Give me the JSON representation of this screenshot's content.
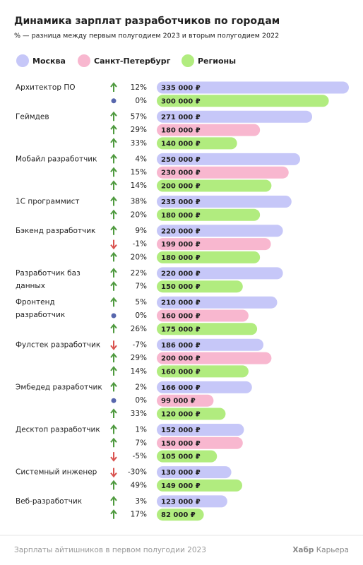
{
  "chart_data": {
    "type": "bar",
    "title": "Динамика зарплат разработчиков по городам",
    "subtitle": "% — разница между первым полугодием 2023 и вторым полугодием 2022",
    "categories": [
      "Архитектор ПО",
      "Геймдев",
      "Мобайл разработчик",
      "1С программист",
      "Бэкенд разработчик",
      "Разработчик баз данных",
      "Фронтенд разработчик",
      "Фулстек разработчик",
      "Эмбедед разработчик",
      "Десктоп разработчик",
      "Системный инженер",
      "Веб-разработчик"
    ],
    "series": [
      {
        "name": "Москва",
        "color": "#c6c7f8",
        "values": [
          335000,
          271000,
          250000,
          235000,
          220000,
          220000,
          210000,
          186000,
          166000,
          152000,
          130000,
          123000
        ],
        "value_labels": [
          "335 000 ₽",
          "271 000 ₽",
          "250 000 ₽",
          "235 000 ₽",
          "220 000 ₽",
          "220 000 ₽",
          "210 000 ₽",
          "186 000 ₽",
          "166 000 ₽",
          "152 000 ₽",
          "130 000 ₽",
          "123 000 ₽"
        ],
        "changes": [
          12,
          57,
          4,
          38,
          9,
          22,
          5,
          -7,
          2,
          1,
          -30,
          3
        ],
        "change_labels": [
          "12%",
          "57%",
          "4%",
          "38%",
          "9%",
          "22%",
          "5%",
          "-7%",
          "2%",
          "1%",
          "-30%",
          "3%"
        ]
      },
      {
        "name": "Санкт-Петербург",
        "color": "#f8b7cf",
        "values": [
          null,
          180000,
          230000,
          null,
          199000,
          null,
          160000,
          200000,
          99000,
          150000,
          null,
          null
        ],
        "value_labels": [
          null,
          "180 000 ₽",
          "230 000 ₽",
          null,
          "199 000 ₽",
          null,
          "160 000 ₽",
          "200 000 ₽",
          "99 000 ₽",
          "150 000 ₽",
          null,
          null
        ],
        "changes": [
          null,
          29,
          15,
          null,
          -1,
          null,
          0,
          29,
          0,
          7,
          null,
          null
        ],
        "change_labels": [
          null,
          "29%",
          "15%",
          null,
          "-1%",
          null,
          "0%",
          "29%",
          "0%",
          "7%",
          null,
          null
        ]
      },
      {
        "name": "Регионы",
        "color": "#b1ec7f",
        "values": [
          300000,
          140000,
          200000,
          180000,
          180000,
          150000,
          175000,
          160000,
          120000,
          105000,
          149000,
          82000
        ],
        "value_labels": [
          "300 000 ₽",
          "140 000 ₽",
          "200 000 ₽",
          "180 000 ₽",
          "180 000 ₽",
          "150 000 ₽",
          "175 000 ₽",
          "160 000 ₽",
          "120 000 ₽",
          "105 000 ₽",
          "149 000 ₽",
          "82 000 ₽"
        ],
        "changes": [
          0,
          33,
          14,
          20,
          20,
          7,
          26,
          14,
          33,
          -5,
          49,
          17
        ],
        "change_labels": [
          "0%",
          "33%",
          "14%",
          "20%",
          "20%",
          "7%",
          "26%",
          "14%",
          "33%",
          "-5%",
          "49%",
          "17%"
        ]
      }
    ],
    "source": "Зарплаты айтишников в первом полугодии 2023",
    "brand": [
      "Хабр",
      "Карьера"
    ]
  }
}
